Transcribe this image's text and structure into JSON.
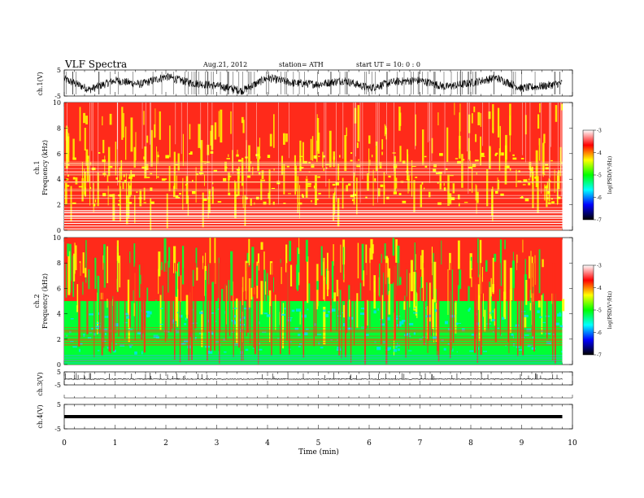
{
  "header": {
    "title": "VLF  Spectra",
    "date": "Aug.21, 2012",
    "station": "station= ATH",
    "start": "start  UT  =    10: 0  : 0"
  },
  "colors": {
    "spec_high": "#ff2a1a",
    "spec_mid": "#ffff00",
    "spec_low": "#00ff33",
    "spec_floor": "#00e0ff",
    "colorbar": [
      "#000000",
      "#0000ff",
      "#00ffff",
      "#00ff00",
      "#ffff00",
      "#ff0000",
      "#ffffff"
    ]
  },
  "chart_data": [
    {
      "type": "line",
      "name": "ch1-waveform",
      "ylabel": "ch.1(V)",
      "ylim": [
        -5,
        5
      ],
      "yticks": [
        "5",
        "-5"
      ],
      "xlim": [
        0,
        10
      ],
      "y_approx_envelope": {
        "x": [
          0,
          0.5,
          1,
          1.5,
          2,
          2.5,
          3,
          3.5,
          4,
          4.5,
          5,
          5.5,
          6,
          6.5,
          7,
          7.5,
          8,
          8.5,
          9,
          9.5,
          9.8
        ],
        "y": [
          1.5,
          -2.5,
          1,
          -0.5,
          2.5,
          0,
          -1,
          -3,
          2,
          0,
          -0.5,
          1,
          -2,
          0.5,
          1,
          -1.5,
          0,
          2,
          -2,
          -1,
          0
        ]
      }
    },
    {
      "type": "heatmap",
      "name": "ch1-spectrogram",
      "ylabel": "ch.1\nFrequency  (kHz)",
      "ylim": [
        0,
        10
      ],
      "yticks": [
        "10",
        "8",
        "6",
        "4",
        "2",
        "0"
      ],
      "xlim": [
        0,
        10
      ],
      "data_end_min": 9.8,
      "zlabel": "log(PSD(V²/Hz)",
      "zlim": [
        -7,
        -3
      ],
      "zticks": [
        "-3",
        "-4",
        "-5",
        "-6",
        "-7"
      ],
      "dominant_levels": {
        "high_log_psd": -4,
        "mid_log_psd": -4.8
      }
    },
    {
      "type": "heatmap",
      "name": "ch2-spectrogram",
      "ylabel": "ch.2\nFrequency  (kHz)",
      "ylim": [
        0,
        10
      ],
      "yticks": [
        "10",
        "8",
        "6",
        "4",
        "2",
        "0"
      ],
      "xlim": [
        0,
        10
      ],
      "data_end_min": 9.8,
      "zlabel": "log(PSD(V²/Hz)",
      "zlim": [
        -7,
        -3
      ],
      "zticks": [
        "-3",
        "-4",
        "-5",
        "-6",
        "-7"
      ],
      "dominant_levels": {
        "upper_band_log_psd": -4,
        "lower_band_log_psd": -5.5
      }
    },
    {
      "type": "line",
      "name": "ch3-waveform",
      "ylabel": "ch.3(V)",
      "ylim": [
        -5,
        5
      ],
      "yticks": [
        "5",
        "-5"
      ],
      "baseline": -0.5,
      "xlim": [
        0,
        10
      ]
    },
    {
      "type": "line",
      "name": "ch4-waveform",
      "ylabel": "ch.4(V)",
      "ylim": [
        -5,
        5
      ],
      "yticks": [
        "5",
        "-5"
      ],
      "baseline": 0,
      "xlim": [
        0,
        10
      ]
    }
  ],
  "xaxis": {
    "label": "Time  (min)",
    "ticks": [
      "0",
      "1",
      "2",
      "3",
      "4",
      "5",
      "6",
      "7",
      "8",
      "9",
      "10"
    ]
  }
}
